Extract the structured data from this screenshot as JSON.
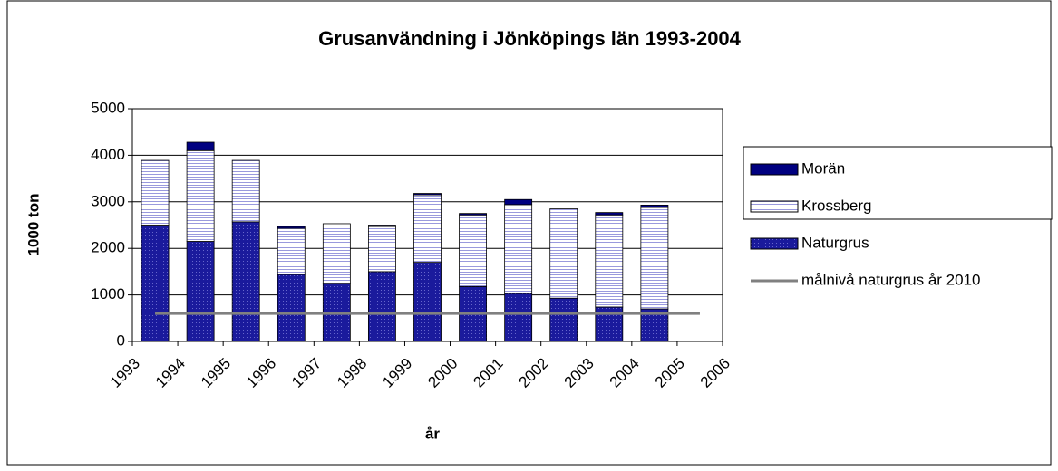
{
  "chart_data": {
    "type": "stacked_bar",
    "title": "Grusanvändning i Jönköpings län 1993-2004",
    "x_label": "år",
    "y_label": "1000 ton",
    "categories": [
      "1993",
      "1994",
      "1995",
      "1996",
      "1997",
      "1998",
      "1999",
      "2000",
      "2001",
      "2002",
      "2003",
      "2004",
      "2005",
      "2006"
    ],
    "series": [
      {
        "name": "Naturgrus",
        "color": "#1a1a9c",
        "values": [
          2500,
          2150,
          2570,
          1440,
          1250,
          1500,
          1700,
          1180,
          1030,
          930,
          740,
          700,
          null,
          null
        ]
      },
      {
        "name": "Krossberg",
        "color": "#ccccff",
        "values": [
          1390,
          1950,
          1320,
          990,
          1280,
          970,
          1450,
          1540,
          1910,
          1920,
          1980,
          2180,
          null,
          null
        ]
      },
      {
        "name": "Morän",
        "color": "#000080",
        "values": [
          0,
          180,
          0,
          40,
          0,
          30,
          30,
          30,
          110,
          0,
          50,
          50,
          null,
          null
        ]
      },
      {
        "name": "målnivå naturgrus år 2010",
        "type": "line",
        "color": "#808080",
        "values": [
          600,
          600,
          600,
          600,
          600,
          600,
          600,
          600,
          600,
          600,
          600,
          600,
          600,
          null
        ]
      }
    ],
    "ylim": [
      0,
      5000
    ],
    "yticks": [
      0,
      1000,
      2000,
      3000,
      4000,
      5000
    ],
    "grid": true,
    "legend": "right"
  }
}
